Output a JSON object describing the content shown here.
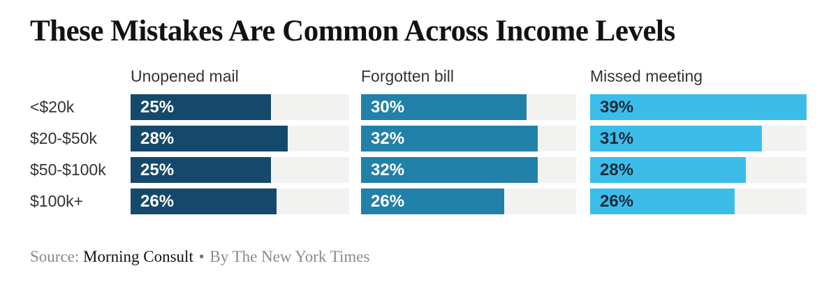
{
  "page": {
    "title": "These Mistakes Are Common Across Income Levels",
    "source": {
      "label": "Source:",
      "name": "Morning Consult",
      "separator": "•",
      "byline": "By The New York Times"
    }
  },
  "colors": {
    "background": "#ffffff",
    "title_text": "#121212",
    "axis_text": "#333333",
    "track": "#f2f2f1",
    "source_muted": "#8a8a8a",
    "source_dark": "#121212"
  },
  "chart_data": {
    "type": "bar",
    "orientation": "horizontal",
    "title": "These Mistakes Are Common Across Income Levels",
    "categories": [
      "<$20k",
      "$20-$50k",
      "$50-$100k",
      "$100k+"
    ],
    "series": [
      {
        "name": "Unopened mail",
        "values": [
          25,
          28,
          25,
          26
        ],
        "labels": [
          "25%",
          "28%",
          "25%",
          "26%"
        ],
        "color": "#15496b",
        "label_color": "#ffffff"
      },
      {
        "name": "Forgotten bill",
        "values": [
          30,
          32,
          32,
          26
        ],
        "labels": [
          "30%",
          "32%",
          "32%",
          "26%"
        ],
        "color": "#2181a8",
        "label_color": "#ffffff"
      },
      {
        "name": "Missed meeting",
        "values": [
          39,
          31,
          28,
          26
        ],
        "labels": [
          "39%",
          "31%",
          "28%",
          "26%"
        ],
        "color": "#3cbde9",
        "label_color": "#1c2b39"
      }
    ],
    "xlim": [
      0,
      39
    ],
    "value_suffix": "%",
    "grid": false,
    "legend": "column-headers",
    "source": "Morning Consult",
    "credit": "By The New York Times"
  }
}
